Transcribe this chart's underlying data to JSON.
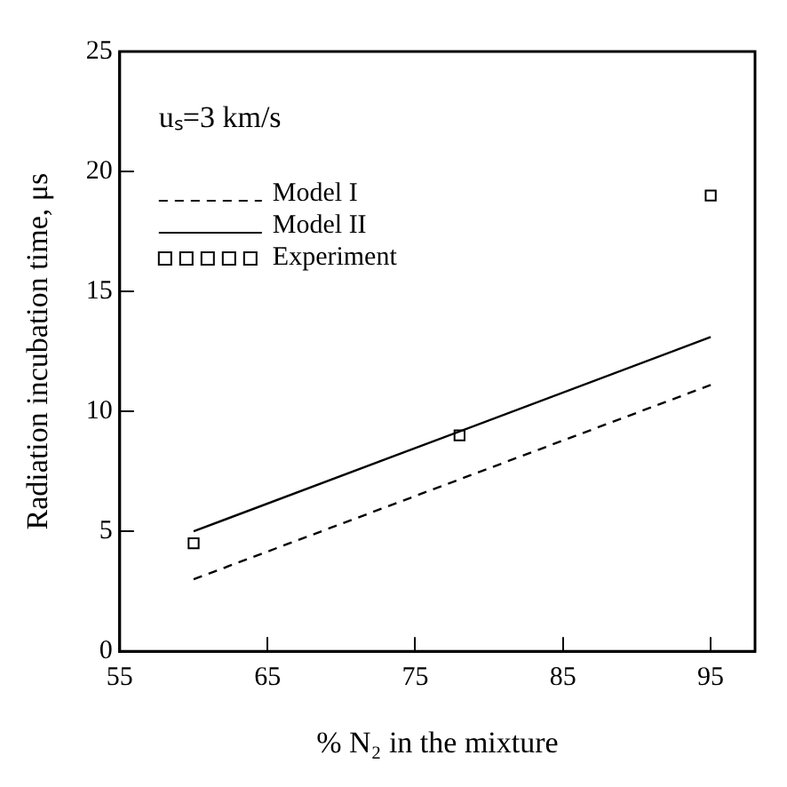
{
  "chart_data": {
    "type": "line",
    "xlabel": "% N₂ in the mixture",
    "ylabel": "Radiation incubation time, μs",
    "annotations": [
      "uₛ=3 km/s"
    ],
    "xlim": [
      55,
      98
    ],
    "xticks": [
      55,
      65,
      75,
      85,
      95
    ],
    "ylim": [
      0,
      25
    ],
    "yticks": [
      0,
      5,
      10,
      15,
      20,
      25
    ],
    "grid": false,
    "legend": "top left",
    "series": [
      {
        "name": "Model I",
        "line_style": "dashed",
        "marker": "none",
        "color": "#000000",
        "x": [
          60,
          95
        ],
        "values": [
          3.0,
          11.1
        ]
      },
      {
        "name": "Model II",
        "line_style": "solid",
        "marker": "none",
        "color": "#000000",
        "x": [
          60,
          95
        ],
        "values": [
          5.0,
          13.1
        ]
      },
      {
        "name": "Experiment",
        "type": "scatter",
        "marker": "square",
        "color": "#000000",
        "x": [
          60,
          78,
          95
        ],
        "values": [
          4.5,
          9.0,
          19.0
        ]
      }
    ]
  }
}
